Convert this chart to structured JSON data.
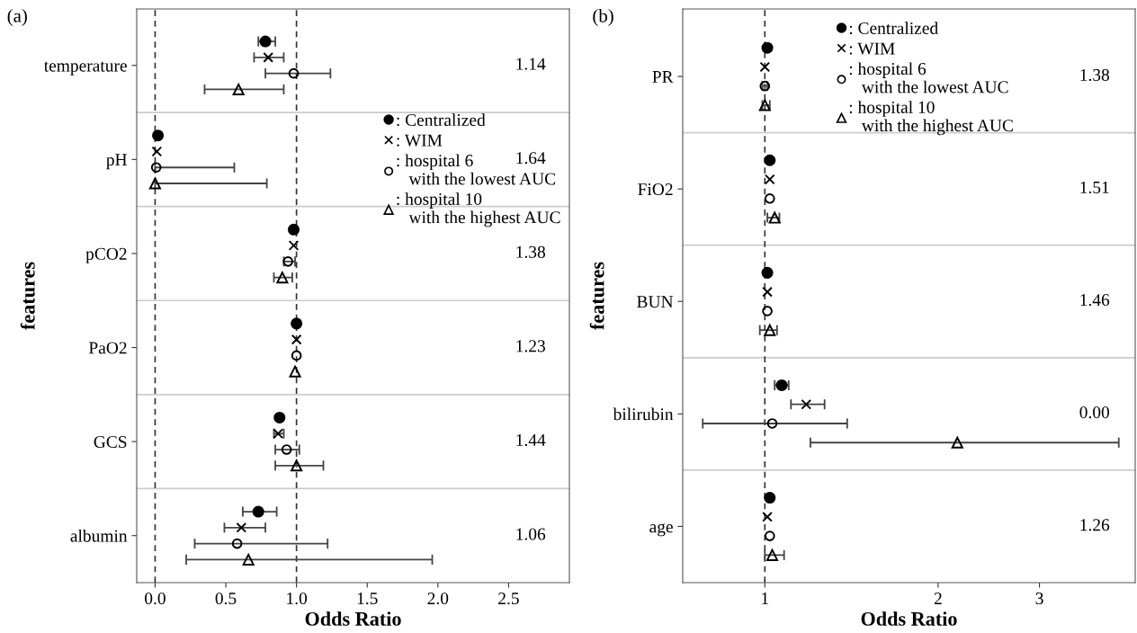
{
  "chart_data": [
    {
      "type": "scatter",
      "orientation": "horizontal",
      "title": "(a)",
      "xlabel": "Odds Ratio",
      "ylabel": "features",
      "categories": [
        "temperature",
        "pH",
        "pCO2",
        "PaO2",
        "GCS",
        "albumin"
      ],
      "xlim": [
        -0.13,
        2.93
      ],
      "xticks": [
        {
          "value": 0,
          "label": "0.0"
        },
        {
          "value": 0.5,
          "label": "0.5"
        },
        {
          "value": 1,
          "label": "1.0"
        },
        {
          "value": 1.5,
          "label": "1.5"
        },
        {
          "value": 2,
          "label": "2.0"
        },
        {
          "value": 2.5,
          "label": "2.5"
        }
      ],
      "grid": "y",
      "legend": "top right",
      "ref_lines": [
        {
          "axis": "x",
          "value": 0,
          "line_style": "dashed",
          "color": "#333333"
        },
        {
          "axis": "x",
          "value": 1,
          "line_style": "dashed",
          "color": "#333333"
        }
      ],
      "series": [
        {
          "name": ": Centralized",
          "color": "#000000",
          "marker": "circle",
          "values": [
            0.78,
            0.02,
            0.98,
            1.0,
            0.88,
            0.73
          ],
          "errors": [
            [
              0.73,
              0.85
            ],
            null,
            null,
            null,
            null,
            [
              0.62,
              0.86
            ]
          ]
        },
        {
          "name": ": WIM",
          "color": "#000000",
          "marker": "cross",
          "values": [
            0.8,
            0.012,
            0.98,
            1.0,
            0.87,
            0.61
          ],
          "errors": [
            [
              0.7,
              0.91
            ],
            null,
            null,
            null,
            [
              0.84,
              0.91
            ],
            [
              0.49,
              0.78
            ]
          ]
        },
        {
          "name": ": hospital 6\n   with the lowest AUC",
          "color": "#000000",
          "marker": "circle-open",
          "values": [
            0.98,
            0.008,
            0.94,
            1.0,
            0.93,
            0.58
          ],
          "errors": [
            [
              0.78,
              1.24
            ],
            [
              0.0,
              0.56
            ],
            [
              0.91,
              0.99
            ],
            null,
            [
              0.85,
              1.02
            ],
            [
              0.28,
              1.22
            ]
          ]
        },
        {
          "name": ": hospital 10\n   with the highest AUC",
          "color": "#000000",
          "marker": "triangle-open",
          "values": [
            0.59,
            0.0,
            0.9,
            0.99,
            1.0,
            0.66
          ],
          "errors": [
            [
              0.35,
              0.91
            ],
            [
              0.0,
              0.79
            ],
            [
              0.84,
              0.97
            ],
            null,
            [
              0.85,
              1.19
            ],
            [
              0.22,
              1.96
            ]
          ]
        }
      ],
      "annotations": [
        "1.14",
        "1.64",
        "1.38",
        "1.23",
        "1.44",
        "1.06"
      ]
    },
    {
      "type": "scatter",
      "orientation": "horizontal",
      "title": "(b)",
      "xlabel": "Odds Ratio",
      "ylabel": "features",
      "log": "x",
      "categories": [
        "PR",
        "FiO2",
        "BUN",
        "bilirubin",
        "age"
      ],
      "xlim": [
        0.72,
        4.4
      ],
      "xticks": [
        1,
        2,
        3
      ],
      "grid": "y",
      "legend": "top",
      "ref_lines": [
        {
          "axis": "x",
          "value": 1,
          "line_style": "dashed",
          "color": "#333333"
        }
      ],
      "series": [
        {
          "name": ": Centralized",
          "color": "#000000",
          "marker": "circle",
          "values": [
            1.01,
            1.02,
            1.01,
            1.07,
            1.02
          ],
          "errors": [
            null,
            null,
            null,
            [
              1.04,
              1.1
            ],
            null
          ]
        },
        {
          "name": ": WIM",
          "color": "#000000",
          "marker": "cross",
          "values": [
            1.0,
            1.02,
            1.01,
            1.18,
            1.01
          ],
          "errors": [
            null,
            null,
            null,
            [
              1.11,
              1.27
            ],
            null
          ]
        },
        {
          "name": ": hospital 6\n   with the lowest AUC",
          "color": "#000000",
          "marker": "circle-open",
          "values": [
            1.0,
            1.02,
            1.01,
            1.03,
            1.02
          ],
          "errors": [
            [
              0.99,
              1.01
            ],
            null,
            null,
            [
              0.78,
              1.39
            ],
            null
          ]
        },
        {
          "name": ": hospital 10\n   with the highest AUC",
          "color": "#000000",
          "marker": "triangle-open",
          "values": [
            1.0,
            1.04,
            1.02,
            2.16,
            1.03
          ],
          "errors": [
            [
              0.99,
              1.02
            ],
            [
              1.01,
              1.06
            ],
            [
              0.98,
              1.05
            ],
            [
              1.2,
              4.12
            ],
            [
              1.0,
              1.08
            ]
          ]
        }
      ],
      "annotations": [
        "1.38",
        "1.51",
        "1.46",
        "0.00",
        "1.26"
      ]
    }
  ]
}
